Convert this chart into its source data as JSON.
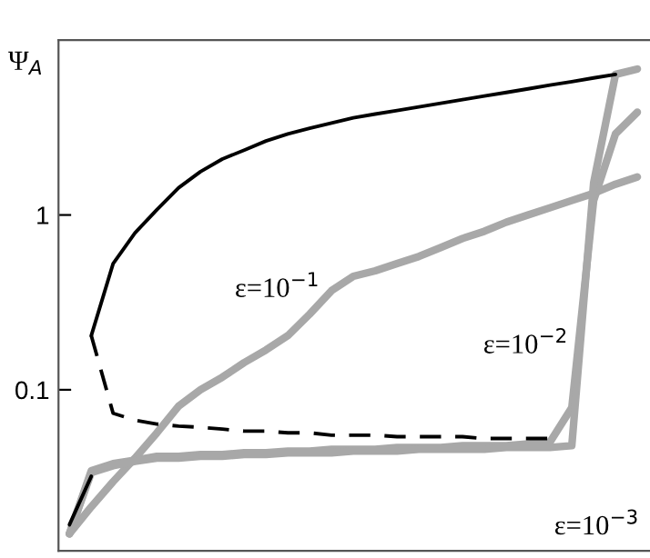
{
  "chart_data": {
    "type": "line",
    "ylabel": "Ψ$_{A}$",
    "log": "y",
    "grid": false,
    "marker": "none",
    "categories": [
      null,
      null,
      null,
      null,
      null,
      null,
      null,
      null,
      null,
      null,
      null,
      null,
      null,
      null,
      null,
      null,
      null,
      null,
      null,
      null,
      null,
      null,
      null,
      null,
      null,
      null,
      null
    ],
    "ylim": [
      0.012,
      10
    ],
    "yticks": [
      0.1,
      1
    ],
    "tick_labels": "y",
    "series": [
      {
        "color": "#000000",
        "line_style": "solid",
        "values": [
          0.0169,
          0.032,
          null,
          null,
          null,
          null,
          null,
          null,
          null,
          null,
          null,
          null,
          null,
          null,
          null,
          null,
          null,
          null,
          null,
          null,
          null,
          null,
          null,
          null,
          null,
          null,
          null
        ]
      },
      {
        "color": "#000000",
        "line_style": "solid",
        "values": [
          null,
          0.204,
          0.527,
          0.789,
          1.07,
          1.43,
          1.77,
          2.09,
          2.35,
          2.65,
          2.91,
          3.13,
          3.36,
          3.6,
          3.78,
          3.96,
          4.15,
          4.36,
          4.57,
          4.79,
          5.02,
          5.27,
          5.53,
          5.79,
          6.08,
          6.37,
          null
        ]
      },
      {
        "color": "#000000",
        "line_style": "dashed",
        "values": [
          null,
          0.204,
          0.0734,
          0.067,
          0.0637,
          0.062,
          0.061,
          0.0596,
          0.058,
          0.058,
          0.0567,
          0.0567,
          0.055,
          0.055,
          0.055,
          0.0539,
          0.0539,
          0.0539,
          0.0539,
          0.0526,
          0.0526,
          0.0526,
          0.0526,
          null,
          null,
          null,
          null
        ]
      },
      {
        "color": "#a8a8a8",
        "line_style": "solid",
        "values": [
          0.015,
          0.0214,
          0.0298,
          0.0406,
          0.0566,
          0.0807,
          0.1,
          0.118,
          0.143,
          0.169,
          0.204,
          0.271,
          0.369,
          0.446,
          0.479,
          0.527,
          0.579,
          0.652,
          0.734,
          0.807,
          0.909,
          1.0,
          1.1,
          1.21,
          1.33,
          1.5,
          1.65
        ]
      },
      {
        "color": "#a8a8a8",
        "line_style": "solid",
        "values": [
          0.015,
          0.0344,
          0.0378,
          0.0396,
          0.0416,
          0.0416,
          0.0426,
          0.0426,
          0.0436,
          0.0436,
          0.0446,
          0.0446,
          0.0457,
          0.0457,
          0.0457,
          0.0468,
          0.0468,
          0.0468,
          0.0479,
          0.0479,
          0.0479,
          0.049,
          0.0502,
          0.079,
          1.21,
          2.91,
          3.87
        ]
      },
      {
        "color": "#a8a8a8",
        "line_style": "solid",
        "values": [
          0.015,
          0.0336,
          0.0368,
          0.039,
          0.0406,
          0.0406,
          0.0416,
          0.0416,
          0.0426,
          0.0426,
          0.0436,
          0.0436,
          0.0436,
          0.0446,
          0.0446,
          0.0446,
          0.0457,
          0.0457,
          0.0457,
          0.0457,
          0.0468,
          0.0468,
          0.0468,
          0.0479,
          1.53,
          6.37,
          6.84
        ]
      }
    ],
    "annotations": [
      "ε=10$^{−1}$",
      "ε=10$^{−2}$",
      "ε=10$^{−3}$"
    ]
  }
}
